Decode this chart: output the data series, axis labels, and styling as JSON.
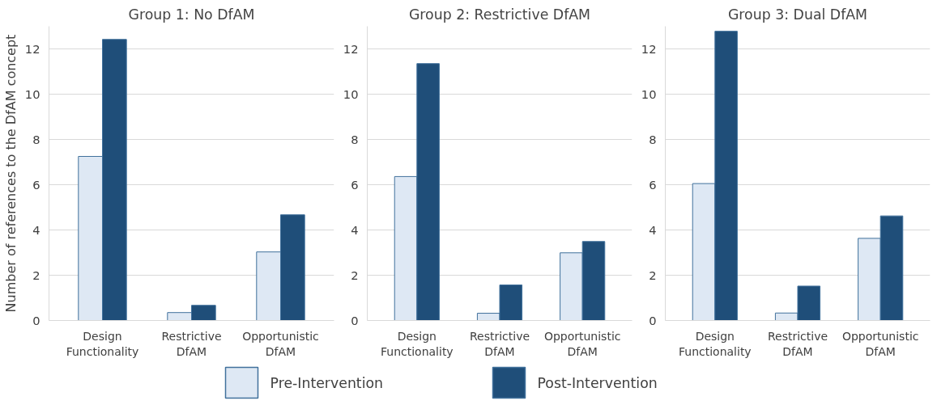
{
  "chart_data": [
    {
      "type": "bar",
      "title": "Group 1: No DfAM",
      "ylabel": "Number of references to the DfAM concept",
      "categories": [
        "Design Functionality",
        "Restrictive DfAM",
        "Opportunistic DfAM"
      ],
      "series": [
        {
          "name": "Pre-Intervention",
          "color": "#dee8f4",
          "values": [
            7.25,
            0.35,
            3.03
          ]
        },
        {
          "name": "Post-Intervention",
          "color": "#1f4e79",
          "values": [
            12.42,
            0.67,
            4.67
          ]
        }
      ],
      "ylim": [
        0,
        13
      ],
      "yticks": [
        0,
        2,
        4,
        6,
        8,
        10,
        12
      ],
      "grid": "y",
      "legend": "bottom"
    },
    {
      "type": "bar",
      "title": "Group 2: Restrictive DfAM",
      "categories": [
        "Design Functionality",
        "Restrictive DfAM",
        "Opportunistic DfAM"
      ],
      "series": [
        {
          "color": "#dee8f4",
          "values": [
            6.36,
            0.32,
            2.99
          ]
        },
        {
          "color": "#1f4e79",
          "values": [
            11.35,
            1.57,
            3.49
          ]
        }
      ],
      "ylim": [
        0,
        13
      ],
      "yticks": [
        0,
        2,
        4,
        6,
        8,
        10,
        12
      ],
      "grid": "y"
    },
    {
      "type": "bar",
      "title": "Group 3: Dual DfAM",
      "categories": [
        "Design Functionality",
        "Restrictive DfAM",
        "Opportunistic DfAM"
      ],
      "series": [
        {
          "color": "#dee8f4",
          "values": [
            6.05,
            0.33,
            3.63
          ]
        },
        {
          "color": "#1f4e79",
          "values": [
            12.78,
            1.52,
            4.62
          ]
        }
      ],
      "ylim": [
        0,
        13
      ],
      "yticks": [
        0,
        2,
        4,
        6,
        8,
        10,
        12
      ],
      "grid": "y"
    }
  ]
}
